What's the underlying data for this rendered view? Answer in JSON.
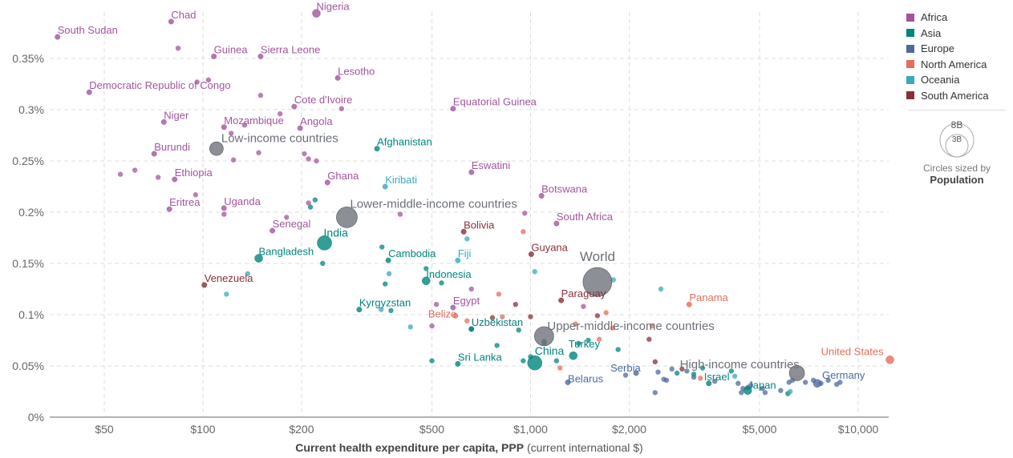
{
  "chart_data": {
    "type": "scatter",
    "title": "",
    "xlabel_bold": "Current health expenditure per capita, PPP",
    "xlabel_rest": "(current international $)",
    "xscale": "log",
    "xlim": [
      35,
      13000
    ],
    "ylim": [
      0,
      0.0039
    ],
    "x_ticks": [
      {
        "value": 50,
        "label": "$50"
      },
      {
        "value": 100,
        "label": "$100"
      },
      {
        "value": 200,
        "label": "$200"
      },
      {
        "value": 500,
        "label": "$500"
      },
      {
        "value": 1000,
        "label": "$1,000"
      },
      {
        "value": 2000,
        "label": "$2,000"
      },
      {
        "value": 5000,
        "label": "$5,000"
      },
      {
        "value": 10000,
        "label": "$10,000"
      }
    ],
    "y_ticks": [
      {
        "value": 0,
        "label": "0%"
      },
      {
        "value": 0.0005,
        "label": "0.05%"
      },
      {
        "value": 0.001,
        "label": "0.1%"
      },
      {
        "value": 0.0015,
        "label": "0.15%"
      },
      {
        "value": 0.002,
        "label": "0.2%"
      },
      {
        "value": 0.0025,
        "label": "0.25%"
      },
      {
        "value": 0.003,
        "label": "0.3%"
      },
      {
        "value": 0.0035,
        "label": "0.35%"
      }
    ],
    "grid": true,
    "legend_position": "right",
    "regions": [
      {
        "name": "Africa",
        "color": "#a2559c"
      },
      {
        "name": "Asia",
        "color": "#00847e"
      },
      {
        "name": "Europe",
        "color": "#4c6a9c"
      },
      {
        "name": "North America",
        "color": "#e56e5a"
      },
      {
        "name": "Oceania",
        "color": "#38aaba"
      },
      {
        "name": "South America",
        "color": "#883039"
      }
    ],
    "aggregate_color": "#6b6f78",
    "size_legend": {
      "large": "8B",
      "small": "3B",
      "caption": "Circles sized by",
      "variable": "Population"
    },
    "labeled_points": [
      {
        "name": "South Sudan",
        "region": "Africa",
        "x": 36,
        "y": 0.00371,
        "size": "s"
      },
      {
        "name": "Chad",
        "region": "Africa",
        "x": 80,
        "y": 0.00386,
        "size": "s"
      },
      {
        "name": "Nigeria",
        "region": "Africa",
        "x": 222,
        "y": 0.00394,
        "size": "m"
      },
      {
        "name": "Guinea",
        "region": "Africa",
        "x": 108,
        "y": 0.00352,
        "size": "s"
      },
      {
        "name": "Sierra Leone",
        "region": "Africa",
        "x": 150,
        "y": 0.00352,
        "size": "s"
      },
      {
        "name": "Lesotho",
        "region": "Africa",
        "x": 258,
        "y": 0.00331,
        "size": "s"
      },
      {
        "name": "Democratic Republic of Congo",
        "region": "Africa",
        "x": 45,
        "y": 0.00317,
        "size": "s"
      },
      {
        "name": "Cote d'Ivoire",
        "region": "Africa",
        "x": 190,
        "y": 0.00303,
        "size": "s"
      },
      {
        "name": "Equatorial Guinea",
        "region": "Africa",
        "x": 580,
        "y": 0.00301,
        "size": "s"
      },
      {
        "name": "Niger",
        "region": "Africa",
        "x": 76,
        "y": 0.00288,
        "size": "s"
      },
      {
        "name": "Mozambique",
        "region": "Africa",
        "x": 116,
        "y": 0.00283,
        "size": "s"
      },
      {
        "name": "Angola",
        "region": "Africa",
        "x": 198,
        "y": 0.00282,
        "size": "s"
      },
      {
        "name": "Burundi",
        "region": "Africa",
        "x": 71,
        "y": 0.00257,
        "size": "s"
      },
      {
        "name": "Afghanistan",
        "region": "Asia",
        "x": 340,
        "y": 0.00262,
        "size": "s"
      },
      {
        "name": "Eswatini",
        "region": "Africa",
        "x": 660,
        "y": 0.00239,
        "size": "s"
      },
      {
        "name": "Ethiopia",
        "region": "Africa",
        "x": 82,
        "y": 0.00232,
        "size": "s"
      },
      {
        "name": "Ghana",
        "region": "Africa",
        "x": 240,
        "y": 0.00229,
        "size": "s"
      },
      {
        "name": "Kiribati",
        "region": "Oceania",
        "x": 360,
        "y": 0.00225,
        "size": "s"
      },
      {
        "name": "Botswana",
        "region": "Africa",
        "x": 1080,
        "y": 0.00216,
        "size": "s"
      },
      {
        "name": "Eritrea",
        "region": "Africa",
        "x": 79,
        "y": 0.00203,
        "size": "s"
      },
      {
        "name": "Uganda",
        "region": "Africa",
        "x": 116,
        "y": 0.00204,
        "size": "s"
      },
      {
        "name": "South Africa",
        "region": "Africa",
        "x": 1200,
        "y": 0.00189,
        "size": "s"
      },
      {
        "name": "Senegal",
        "region": "Africa",
        "x": 163,
        "y": 0.00182,
        "size": "s"
      },
      {
        "name": "Bolivia",
        "region": "South America",
        "x": 625,
        "y": 0.00181,
        "size": "s"
      },
      {
        "name": "India",
        "region": "Asia",
        "x": 235,
        "y": 0.0017,
        "size": "l"
      },
      {
        "name": "Guyana",
        "region": "South America",
        "x": 1005,
        "y": 0.00159,
        "size": "s"
      },
      {
        "name": "Bangladesh",
        "region": "Asia",
        "x": 148,
        "y": 0.00155,
        "size": "m"
      },
      {
        "name": "Cambodia",
        "region": "Asia",
        "x": 368,
        "y": 0.00153,
        "size": "s"
      },
      {
        "name": "Fiji",
        "region": "Oceania",
        "x": 600,
        "y": 0.00153,
        "size": "s"
      },
      {
        "name": "Indonesia",
        "region": "Asia",
        "x": 480,
        "y": 0.00133,
        "size": "m"
      },
      {
        "name": "Venezuela",
        "region": "South America",
        "x": 101,
        "y": 0.00129,
        "size": "s"
      },
      {
        "name": "Paraguay",
        "region": "South America",
        "x": 1240,
        "y": 0.00114,
        "size": "s"
      },
      {
        "name": "Panama",
        "region": "North America",
        "x": 3050,
        "y": 0.0011,
        "size": "s"
      },
      {
        "name": "Kyrgyzstan",
        "region": "Asia",
        "x": 300,
        "y": 0.00105,
        "size": "s"
      },
      {
        "name": "Egypt",
        "region": "Africa",
        "x": 580,
        "y": 0.00107,
        "size": "s"
      },
      {
        "name": "Belize",
        "region": "North America",
        "x": 590,
        "y": 0.00099,
        "size": "s"
      },
      {
        "name": "Uzbekistan",
        "region": "Asia",
        "x": 660,
        "y": 0.00086,
        "size": "s"
      },
      {
        "name": "Sri Lanka",
        "region": "Asia",
        "x": 600,
        "y": 0.00052,
        "size": "s"
      },
      {
        "name": "China",
        "region": "Asia",
        "x": 1030,
        "y": 0.00053,
        "size": "l"
      },
      {
        "name": "Turkey",
        "region": "Asia",
        "x": 1350,
        "y": 0.0006,
        "size": "m"
      },
      {
        "name": "Belarus",
        "region": "Europe",
        "x": 1300,
        "y": 0.00034,
        "size": "s"
      },
      {
        "name": "Serbia",
        "region": "Europe",
        "x": 2100,
        "y": 0.00043,
        "size": "s"
      },
      {
        "name": "Israel",
        "region": "Asia",
        "x": 3500,
        "y": 0.00033,
        "size": "s"
      },
      {
        "name": "Japan",
        "region": "Asia",
        "x": 4600,
        "y": 0.00026,
        "size": "m"
      },
      {
        "name": "Germany",
        "region": "Europe",
        "x": 7500,
        "y": 0.00033,
        "size": "m"
      },
      {
        "name": "United States",
        "region": "North America",
        "x": 12500,
        "y": 0.00056,
        "size": "m"
      }
    ],
    "aggregates": [
      {
        "name": "Low-income countries",
        "x": 110,
        "y": 0.00262,
        "size": 9
      },
      {
        "name": "Lower-middle-income countries",
        "x": 275,
        "y": 0.00195,
        "size": 18
      },
      {
        "name": "World",
        "x": 1600,
        "y": 0.00132,
        "size": 28
      },
      {
        "name": "Upper-middle-income countries",
        "x": 1100,
        "y": 0.00079,
        "size": 16
      },
      {
        "name": "High-income countries",
        "x": 6500,
        "y": 0.00043,
        "size": 11
      }
    ],
    "unlabeled_points": [
      [
        "Africa",
        84,
        0.0036
      ],
      [
        "Africa",
        96,
        0.00327
      ],
      [
        "Africa",
        104,
        0.00329
      ],
      [
        "Africa",
        150,
        0.00314
      ],
      [
        "Africa",
        95,
        0.00217
      ],
      [
        "Africa",
        56,
        0.00237
      ],
      [
        "Africa",
        62,
        0.00241
      ],
      [
        "Africa",
        73,
        0.00234
      ],
      [
        "Africa",
        116,
        0.00198
      ],
      [
        "Africa",
        180,
        0.00195
      ],
      [
        "Africa",
        122,
        0.00277
      ],
      [
        "Africa",
        134,
        0.00285
      ],
      [
        "Africa",
        148,
        0.00258
      ],
      [
        "Africa",
        204,
        0.00257
      ],
      [
        "Africa",
        210,
        0.00252
      ],
      [
        "Africa",
        222,
        0.0025
      ],
      [
        "Africa",
        124,
        0.00251
      ],
      [
        "Africa",
        172,
        0.00296
      ],
      [
        "Africa",
        265,
        0.00301
      ],
      [
        "Africa",
        400,
        0.00198
      ],
      [
        "Africa",
        210,
        0.00209
      ],
      [
        "Africa",
        500,
        0.00089
      ],
      [
        "Africa",
        516,
        0.0011
      ],
      [
        "Africa",
        660,
        0.00125
      ],
      [
        "Africa",
        1450,
        0.00108
      ],
      [
        "Africa",
        960,
        0.00199
      ],
      [
        "Asia",
        220,
        0.00212
      ],
      [
        "Asia",
        213,
        0.00205
      ],
      [
        "Asia",
        232,
        0.0015
      ],
      [
        "Asia",
        352,
        0.00166
      ],
      [
        "Asia",
        535,
        0.00131
      ],
      [
        "Asia",
        480,
        0.00145
      ],
      [
        "Asia",
        360,
        0.0013
      ],
      [
        "Asia",
        660,
        0.00086
      ],
      [
        "Asia",
        790,
        0.0007
      ],
      [
        "Asia",
        1100,
        0.00074
      ],
      [
        "Asia",
        1400,
        0.00072
      ],
      [
        "Asia",
        1500,
        0.00075
      ],
      [
        "Asia",
        1850,
        0.00066
      ],
      [
        "Asia",
        950,
        0.00055
      ],
      [
        "Asia",
        3350,
        0.00048
      ],
      [
        "Asia",
        4100,
        0.00045
      ],
      [
        "Asia",
        6100,
        0.00023
      ],
      [
        "Asia",
        2800,
        0.00043
      ],
      [
        "Asia",
        3150,
        0.00042
      ],
      [
        "Asia",
        500,
        0.00055
      ],
      [
        "Asia",
        1000,
        0.00059
      ],
      [
        "Asia",
        1200,
        0.00055
      ],
      [
        "Asia",
        375,
        0.00104
      ],
      [
        "Asia",
        920,
        0.00085
      ],
      [
        "Europe",
        1950,
        0.00041
      ],
      [
        "Europe",
        2450,
        0.00044
      ],
      [
        "Europe",
        2700,
        0.00047
      ],
      [
        "Europe",
        3000,
        0.00045
      ],
      [
        "Europe",
        3150,
        0.00039
      ],
      [
        "Europe",
        2600,
        0.00036
      ],
      [
        "Europe",
        2550,
        0.00037
      ],
      [
        "Europe",
        3650,
        0.00035
      ],
      [
        "Europe",
        4300,
        0.00033
      ],
      [
        "Europe",
        4450,
        0.00028
      ],
      [
        "Europe",
        4600,
        0.00029
      ],
      [
        "Europe",
        4700,
        0.00031
      ],
      [
        "Europe",
        5100,
        0.00028
      ],
      [
        "Europe",
        5200,
        0.00024
      ],
      [
        "Europe",
        5800,
        0.00026
      ],
      [
        "Europe",
        6150,
        0.00034
      ],
      [
        "Europe",
        6300,
        0.00036
      ],
      [
        "Europe",
        6900,
        0.00034
      ],
      [
        "Europe",
        7300,
        0.00036
      ],
      [
        "Europe",
        7700,
        0.00033
      ],
      [
        "Europe",
        8100,
        0.00036
      ],
      [
        "Europe",
        8600,
        0.00032
      ],
      [
        "Europe",
        4400,
        0.00024
      ],
      [
        "Europe",
        2400,
        0.00024
      ],
      [
        "Europe",
        1100,
        0.00072
      ],
      [
        "Europe",
        8800,
        0.00034
      ],
      [
        "North America",
        640,
        0.00094
      ],
      [
        "North America",
        800,
        0.0012
      ],
      [
        "North America",
        1230,
        0.00048
      ],
      [
        "North America",
        1370,
        0.00091
      ],
      [
        "North America",
        1700,
        0.00102
      ],
      [
        "North America",
        1780,
        0.00087
      ],
      [
        "North America",
        950,
        0.00181
      ],
      [
        "North America",
        2350,
        0.00089
      ],
      [
        "North America",
        3300,
        0.00038
      ],
      [
        "North America",
        820,
        0.00098
      ],
      [
        "North America",
        1620,
        0.00076
      ],
      [
        "Oceania",
        370,
        0.0014
      ],
      [
        "Oceania",
        430,
        0.00088
      ],
      [
        "Oceania",
        640,
        0.00174
      ],
      [
        "Oceania",
        1030,
        0.00142
      ],
      [
        "Oceania",
        1790,
        0.00134
      ],
      [
        "Oceania",
        2500,
        0.00125
      ],
      [
        "Oceania",
        4200,
        0.0004
      ],
      [
        "Oceania",
        6200,
        0.00025
      ],
      [
        "Oceania",
        118,
        0.0012
      ],
      [
        "Oceania",
        137,
        0.0014
      ],
      [
        "Oceania",
        350,
        0.00105
      ],
      [
        "South America",
        900,
        0.0011
      ],
      [
        "South America",
        1600,
        0.00099
      ],
      [
        "South America",
        2300,
        0.00076
      ],
      [
        "South America",
        2400,
        0.00054
      ],
      [
        "South America",
        2900,
        0.00047
      ],
      [
        "South America",
        765,
        0.00097
      ],
      [
        "South America",
        1000,
        0.00098
      ]
    ]
  }
}
